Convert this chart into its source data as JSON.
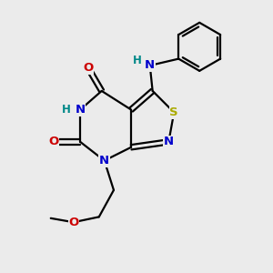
{
  "bg_color": "#ebebeb",
  "atom_colors": {
    "C": "#000000",
    "N": "#0000cc",
    "O": "#cc0000",
    "S": "#aaaa00",
    "H": "#008888"
  },
  "bond_color": "#000000",
  "bond_width": 1.6,
  "figsize": [
    3.0,
    3.0
  ],
  "dpi": 100,
  "xlim": [
    0,
    10
  ],
  "ylim": [
    0,
    10
  ]
}
